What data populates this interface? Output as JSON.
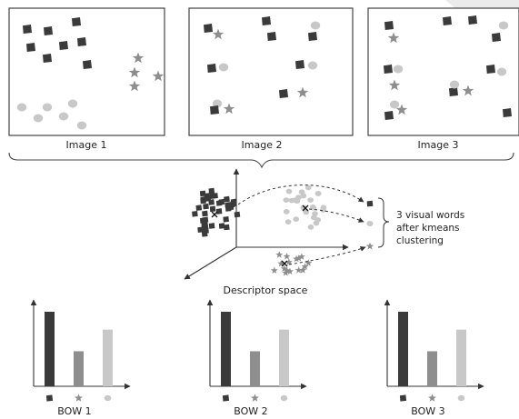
{
  "colors": {
    "square": "#3a3a3a",
    "circle": "#c8c8c8",
    "star": "#8e8e8e",
    "line": "#333333",
    "frame": "#444444",
    "watermark": "#e6e6e6"
  },
  "icons": [
    "square-feature-icon",
    "circle-feature-icon",
    "star-feature-icon",
    "cluster-center-x-icon"
  ],
  "images": [
    {
      "label": "Image 1"
    },
    {
      "label": "Image 2"
    },
    {
      "label": "Image 3"
    }
  ],
  "descriptor_space": {
    "label": "Descriptor space",
    "note_lines": [
      "3 visual words",
      "after kmeans",
      "clustering"
    ]
  },
  "histograms": [
    {
      "label": "BOW 1",
      "values": [
        1.0,
        0.47,
        0.76
      ]
    },
    {
      "label": "BOW 2",
      "values": [
        1.0,
        0.47,
        0.76
      ]
    },
    {
      "label": "BOW 3",
      "values": [
        1.0,
        0.47,
        0.76
      ]
    }
  ]
}
